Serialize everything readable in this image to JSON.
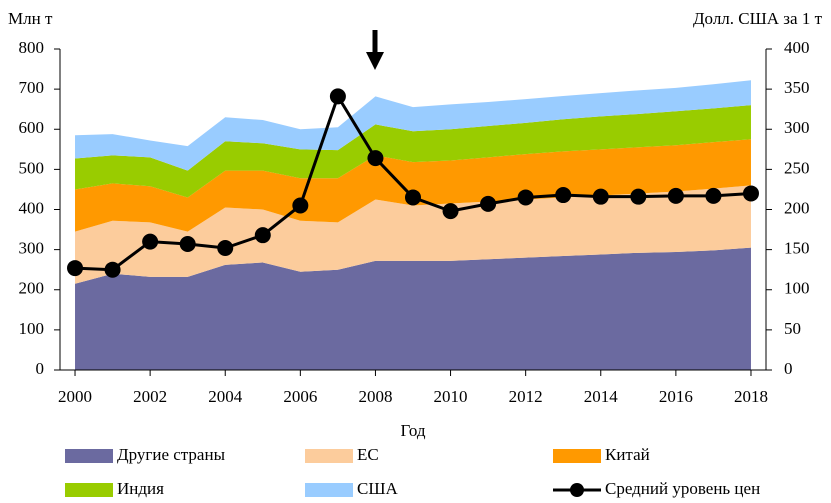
{
  "chart_data": {
    "type": "area",
    "y_label": "Млн т",
    "y2_label": "Долл. США за 1 т",
    "x_label": "Год",
    "x": [
      2000,
      2001,
      2002,
      2003,
      2004,
      2005,
      2006,
      2007,
      2008,
      2009,
      2010,
      2011,
      2012,
      2013,
      2014,
      2015,
      2016,
      2017,
      2018
    ],
    "xlim": [
      1999.6,
      2018.4
    ],
    "xticks": [
      2000,
      2002,
      2004,
      2006,
      2008,
      2010,
      2012,
      2014,
      2016,
      2018
    ],
    "ylim": [
      0,
      800
    ],
    "yticks": [
      0,
      100,
      200,
      300,
      400,
      500,
      600,
      700,
      800
    ],
    "y2lim": [
      0,
      400
    ],
    "y2ticks": [
      0,
      50,
      100,
      150,
      200,
      250,
      300,
      350,
      400
    ],
    "stacked": true,
    "series": [
      {
        "name": "Другие страны",
        "color": "#6b6aa0",
        "values": [
          215,
          240,
          232,
          232,
          262,
          268,
          245,
          250,
          272,
          272,
          272,
          276,
          280,
          284,
          288,
          292,
          294,
          298,
          305
        ]
      },
      {
        "name": "ЕС",
        "color": "#fccc9c",
        "values": [
          130,
          132,
          136,
          113,
          143,
          132,
          127,
          118,
          153,
          138,
          143,
          144,
          145,
          146,
          147,
          148,
          151,
          154,
          155
        ]
      },
      {
        "name": "Китай",
        "color": "#ff9900",
        "values": [
          105,
          93,
          90,
          85,
          92,
          97,
          106,
          110,
          110,
          108,
          107,
          110,
          113,
          115,
          115,
          115,
          115,
          116,
          115
        ]
      },
      {
        "name": "Индия",
        "color": "#99cc00",
        "values": [
          77,
          70,
          72,
          67,
          73,
          68,
          72,
          70,
          77,
          77,
          78,
          78,
          78,
          80,
          82,
          83,
          85,
          84,
          85
        ]
      },
      {
        "name": "США",
        "color": "#99ccff",
        "values": [
          58,
          53,
          42,
          61,
          60,
          58,
          50,
          57,
          70,
          60,
          62,
          60,
          59,
          58,
          58,
          59,
          58,
          60,
          62
        ]
      },
      {
        "name": "Средний уровень цен",
        "color": "#000000",
        "type": "line",
        "axis": "y2",
        "values": [
          127,
          125,
          160,
          157,
          152,
          168,
          205,
          341,
          264,
          215,
          198,
          207,
          215,
          218,
          216,
          216,
          217,
          217,
          220
        ]
      }
    ]
  }
}
